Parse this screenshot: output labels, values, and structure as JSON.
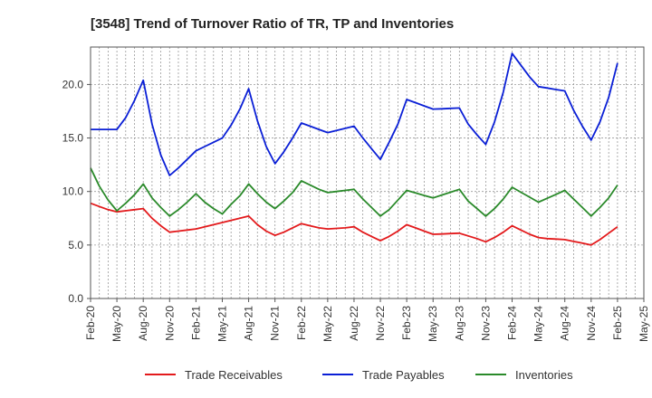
{
  "chart_data": {
    "type": "line",
    "title": "[3548]  Trend of Turnover Ratio of TR, TP and Inventories",
    "xlabel": "",
    "ylabel": "",
    "ylim": [
      0,
      23.5
    ],
    "yticks": [
      "0.0",
      "5.0",
      "10.0",
      "15.0",
      "20.0"
    ],
    "ytick_values": [
      0,
      5,
      10,
      15,
      20
    ],
    "xticks": [
      "Feb-20",
      "May-20",
      "Aug-20",
      "Nov-20",
      "Feb-21",
      "May-21",
      "Aug-21",
      "Nov-21",
      "Feb-22",
      "May-22",
      "Aug-22",
      "Nov-22",
      "Feb-23",
      "May-23",
      "Aug-23",
      "Nov-23",
      "Feb-24",
      "May-24",
      "Aug-24",
      "Nov-24",
      "Feb-25",
      "May-25"
    ],
    "grid": true,
    "legend_position": "bottom",
    "x": [
      "Feb-20",
      "Mar-20",
      "Apr-20",
      "May-20",
      "Jun-20",
      "Jul-20",
      "Aug-20",
      "Sep-20",
      "Oct-20",
      "Nov-20",
      "Dec-20",
      "Jan-21",
      "Feb-21",
      "Mar-21",
      "Apr-21",
      "May-21",
      "Jun-21",
      "Jul-21",
      "Aug-21",
      "Sep-21",
      "Oct-21",
      "Nov-21",
      "Dec-21",
      "Jan-22",
      "Feb-22",
      "Mar-22",
      "Apr-22",
      "May-22",
      "Jun-22",
      "Jul-22",
      "Aug-22",
      "Sep-22",
      "Oct-22",
      "Nov-22",
      "Dec-22",
      "Jan-23",
      "Feb-23",
      "Mar-23",
      "Apr-23",
      "May-23",
      "Jun-23",
      "Jul-23",
      "Aug-23",
      "Sep-23",
      "Oct-23",
      "Nov-23",
      "Dec-23",
      "Jan-24",
      "Feb-24",
      "Mar-24",
      "Apr-24",
      "May-24",
      "Jun-24",
      "Jul-24",
      "Aug-24",
      "Sep-24",
      "Oct-24",
      "Nov-24",
      "Dec-24",
      "Jan-25",
      "Feb-25"
    ],
    "series": [
      {
        "name": "Trade Receivables",
        "color": "#e31a1c",
        "values": [
          8.9,
          8.6,
          8.3,
          8.1,
          8.2,
          8.3,
          8.4,
          7.5,
          6.8,
          6.2,
          6.3,
          6.4,
          6.5,
          6.7,
          6.9,
          7.1,
          7.3,
          7.5,
          7.7,
          6.9,
          6.3,
          5.9,
          6.2,
          6.6,
          7.0,
          6.8,
          6.6,
          6.5,
          6.55,
          6.6,
          6.7,
          6.2,
          5.8,
          5.4,
          5.8,
          6.3,
          6.9,
          6.6,
          6.3,
          6.0,
          6.03,
          6.07,
          6.1,
          5.85,
          5.6,
          5.3,
          5.7,
          6.2,
          6.8,
          6.4,
          6.0,
          5.7,
          5.6,
          5.55,
          5.5,
          5.33,
          5.17,
          5.0,
          5.5,
          6.1,
          6.7
        ]
      },
      {
        "name": "Trade Payables",
        "color": "#0a1fd6",
        "values": [
          15.8,
          15.8,
          15.8,
          15.8,
          16.9,
          18.5,
          20.4,
          16.3,
          13.4,
          11.5,
          12.2,
          13.0,
          13.8,
          14.2,
          14.6,
          15.0,
          16.2,
          17.7,
          19.6,
          16.6,
          14.2,
          12.6,
          13.7,
          15.0,
          16.4,
          16.1,
          15.8,
          15.5,
          15.7,
          15.9,
          16.1,
          15.0,
          14.0,
          13.0,
          14.6,
          16.3,
          18.6,
          18.3,
          18.0,
          17.7,
          17.73,
          17.77,
          17.8,
          16.3,
          15.3,
          14.4,
          16.5,
          19.3,
          22.9,
          21.8,
          20.7,
          19.8,
          19.67,
          19.53,
          19.4,
          17.6,
          16.1,
          14.8,
          16.5,
          18.8,
          22.0
        ]
      },
      {
        "name": "Inventories",
        "color": "#2a8a2a",
        "values": [
          12.2,
          10.5,
          9.2,
          8.2,
          8.9,
          9.7,
          10.7,
          9.4,
          8.5,
          7.7,
          8.3,
          9.0,
          9.8,
          9.0,
          8.4,
          7.9,
          8.8,
          9.6,
          10.7,
          9.8,
          9.0,
          8.4,
          9.1,
          9.9,
          11.0,
          10.6,
          10.2,
          9.9,
          10.0,
          10.1,
          10.2,
          9.3,
          8.5,
          7.7,
          8.3,
          9.2,
          10.1,
          9.87,
          9.63,
          9.4,
          9.67,
          9.93,
          10.2,
          9.1,
          8.4,
          7.7,
          8.4,
          9.3,
          10.4,
          9.93,
          9.47,
          9.0,
          9.37,
          9.73,
          10.1,
          9.3,
          8.5,
          7.7,
          8.5,
          9.4,
          10.6
        ]
      }
    ]
  }
}
